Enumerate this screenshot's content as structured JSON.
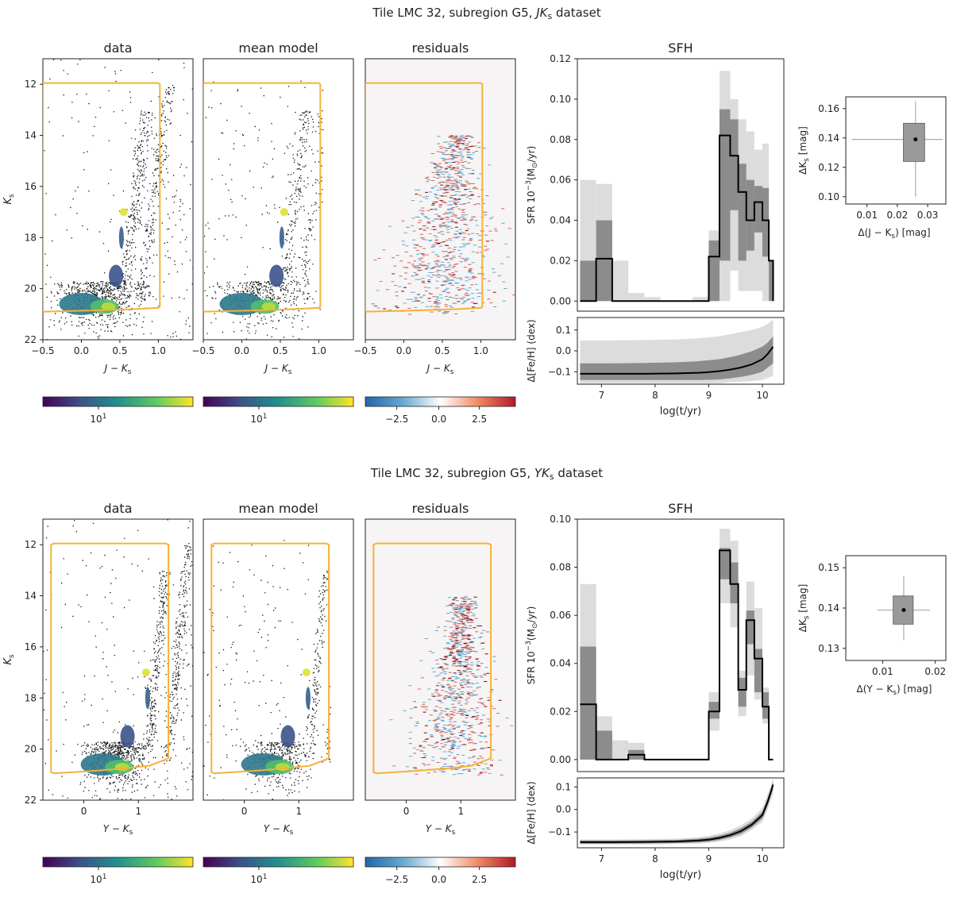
{
  "figure": {
    "panels": [
      {
        "title": "Tile LMC 32, subregion G5, ",
        "title_italic": "JK",
        "title_sub": "s",
        "title_end": " dataset",
        "cmd_titles": [
          "data",
          "mean model",
          "residuals"
        ],
        "cmd_ylabel": "K",
        "cmd_ylabel_sub": "s",
        "cmd_xlabel": [
          "J",
          "−",
          "K",
          "s"
        ],
        "cmd_xticks": [
          -0.5,
          0.0,
          0.5,
          1.0
        ],
        "cmd_xlim": [
          -0.5,
          1.45
        ],
        "cmd_yticks": [
          12,
          14,
          16,
          18,
          20,
          22
        ],
        "cmd_ylim": [
          22,
          11
        ],
        "colorbar_ticks": [
          "10",
          "1"
        ],
        "resid_ticks": [
          "−2.5",
          "0.0",
          "2.5"
        ],
        "sfh_title": "SFH",
        "sfr_ylabel": "SFR 10",
        "sfr_ylabel_exp": "−3",
        "sfr_ylabel_unit": "(M",
        "sfr_ylabel_sun": "⊙",
        "sfr_ylabel_end": "/yr)",
        "feh_ylabel": "Δ[Fe/H] (dex)",
        "age_xlabel": "log(t/yr)",
        "errbox_ylabel": "ΔK",
        "errbox_ylabel_sub": "s",
        "errbox_ylabel_unit": " [mag]",
        "errbox_xlabel": "Δ(J − K",
        "errbox_xlabel_sub": "s",
        "errbox_xlabel_end": ") [mag]"
      },
      {
        "title": "Tile LMC 32, subregion G5, ",
        "title_italic": "YK",
        "title_sub": "s",
        "title_end": " dataset",
        "cmd_titles": [
          "data",
          "mean model",
          "residuals"
        ],
        "cmd_ylabel": "K",
        "cmd_ylabel_sub": "s",
        "cmd_xlabel": [
          "Y",
          "−",
          "K",
          "s"
        ],
        "cmd_xticks": [
          0,
          1
        ],
        "cmd_xlim": [
          -0.75,
          2.0
        ],
        "cmd_yticks": [
          12,
          14,
          16,
          18,
          20,
          22
        ],
        "cmd_ylim": [
          22,
          11
        ],
        "colorbar_ticks": [
          "10",
          "1"
        ],
        "resid_ticks": [
          "−2.5",
          "0.0",
          "2.5"
        ],
        "sfh_title": "SFH",
        "sfr_ylabel": "SFR 10",
        "sfr_ylabel_exp": "−3",
        "sfr_ylabel_unit": "(M",
        "sfr_ylabel_sun": "⊙",
        "sfr_ylabel_end": "/yr)",
        "feh_ylabel": "Δ[Fe/H] (dex)",
        "age_xlabel": "log(t/yr)",
        "errbox_ylabel": "ΔK",
        "errbox_ylabel_sub": "s",
        "errbox_ylabel_unit": " [mag]",
        "errbox_xlabel": "Δ(Y − K",
        "errbox_xlabel_sub": "s",
        "errbox_xlabel_end": ") [mag]"
      }
    ]
  },
  "colors": {
    "selection_box": "#f5b335",
    "sfh_line": "#000000",
    "band_dark": "#8c8c8c",
    "band_light": "#dcdcdc",
    "resid_positive": "#c0392b",
    "resid_negative": "#5fa8d3",
    "viridis": [
      "#440154",
      "#3b528b",
      "#21918c",
      "#5ec962",
      "#fde725"
    ],
    "rdbu": [
      "#2166ac",
      "#67a9cf",
      "#ffffff",
      "#ef8a62",
      "#b2182b"
    ]
  },
  "chart_data": [
    {
      "type": "line",
      "name": "SFH JKs",
      "xlabel": "log(t/yr)",
      "xlim": [
        6.55,
        10.4
      ],
      "xticks": [
        7,
        8,
        9,
        10
      ],
      "ylim": [
        -0.005,
        0.12
      ],
      "yticks": [
        0.0,
        0.02,
        0.04,
        0.06,
        0.08,
        0.1,
        0.12
      ],
      "bin_edges": [
        6.6,
        6.9,
        7.2,
        7.5,
        7.8,
        8.1,
        8.4,
        8.7,
        9.0,
        9.2,
        9.4,
        9.55,
        9.7,
        9.85,
        10.0,
        10.12,
        10.2
      ],
      "sfr": [
        0.0,
        0.021,
        0.0,
        0.0,
        0.0,
        0.0,
        0.0,
        0.0,
        0.022,
        0.082,
        0.072,
        0.054,
        0.04,
        0.049,
        0.04,
        0.02
      ],
      "sfr_lo_dark": [
        0.0,
        0.0,
        0.0,
        0.0,
        0.0,
        0.0,
        0.0,
        0.0,
        0.0,
        0.02,
        0.045,
        0.02,
        0.025,
        0.034,
        0.022,
        0.0
      ],
      "sfr_hi_dark": [
        0.02,
        0.04,
        0.0,
        0.0,
        0.0,
        0.0,
        0.0,
        0.0,
        0.03,
        0.095,
        0.09,
        0.068,
        0.06,
        0.057,
        0.056,
        0.02
      ],
      "sfr_lo_light": [
        0.0,
        0.0,
        0.0,
        0.0,
        0.0,
        0.0,
        0.0,
        0.0,
        0.0,
        0.0,
        0.015,
        0.005,
        0.005,
        0.005,
        0.0,
        0.0
      ],
      "sfr_hi_light": [
        0.06,
        0.058,
        0.02,
        0.004,
        0.002,
        0.0,
        0.0,
        0.002,
        0.035,
        0.114,
        0.1,
        0.09,
        0.084,
        0.075,
        0.078,
        0.02
      ],
      "feh_ylim": [
        -0.16,
        0.16
      ],
      "feh_yticks": [
        -0.1,
        0.0,
        0.1
      ],
      "feh_x": [
        6.6,
        7.2,
        7.8,
        8.4,
        8.8,
        9.0,
        9.2,
        9.4,
        9.6,
        9.8,
        10.0,
        10.1,
        10.2
      ],
      "feh": [
        -0.11,
        -0.11,
        -0.11,
        -0.108,
        -0.105,
        -0.102,
        -0.097,
        -0.09,
        -0.08,
        -0.065,
        -0.04,
        -0.015,
        0.02
      ],
      "feh_dark_lo": [
        -0.14,
        -0.14,
        -0.14,
        -0.14,
        -0.14,
        -0.139,
        -0.137,
        -0.132,
        -0.125,
        -0.115,
        -0.1,
        -0.08,
        -0.06
      ],
      "feh_dark_hi": [
        -0.06,
        -0.06,
        -0.058,
        -0.055,
        -0.05,
        -0.045,
        -0.04,
        -0.03,
        -0.018,
        -0.002,
        0.02,
        0.04,
        0.07
      ],
      "feh_light_lo": [
        -0.155,
        -0.155,
        -0.155,
        -0.155,
        -0.155,
        -0.155,
        -0.155,
        -0.15,
        -0.148,
        -0.145,
        -0.14,
        -0.13,
        -0.12
      ],
      "feh_light_hi": [
        0.05,
        0.05,
        0.052,
        0.055,
        0.06,
        0.065,
        0.07,
        0.08,
        0.09,
        0.1,
        0.115,
        0.13,
        0.15
      ]
    },
    {
      "type": "line",
      "name": "SFH YKs",
      "xlabel": "log(t/yr)",
      "xlim": [
        6.55,
        10.4
      ],
      "xticks": [
        7,
        8,
        9,
        10
      ],
      "ylim": [
        -0.005,
        0.1
      ],
      "yticks": [
        0.0,
        0.02,
        0.04,
        0.06,
        0.08,
        0.1
      ],
      "bin_edges": [
        6.6,
        6.9,
        7.2,
        7.5,
        7.8,
        8.1,
        8.4,
        8.7,
        9.0,
        9.2,
        9.4,
        9.55,
        9.7,
        9.85,
        10.0,
        10.12,
        10.2
      ],
      "sfr": [
        0.023,
        0.0,
        0.0,
        0.002,
        0.0,
        0.0,
        0.0,
        0.0,
        0.02,
        0.087,
        0.073,
        0.029,
        0.058,
        0.042,
        0.022,
        0.0
      ],
      "sfr_lo_dark": [
        0.0,
        0.0,
        0.0,
        0.0,
        0.0,
        0.0,
        0.0,
        0.0,
        0.017,
        0.075,
        0.065,
        0.022,
        0.048,
        0.028,
        0.017,
        0.0
      ],
      "sfr_hi_dark": [
        0.047,
        0.012,
        0.0,
        0.004,
        0.0,
        0.0,
        0.0,
        0.0,
        0.024,
        0.088,
        0.082,
        0.034,
        0.062,
        0.046,
        0.028,
        0.0
      ],
      "sfr_lo_light": [
        0.0,
        0.0,
        0.0,
        0.0,
        0.0,
        0.0,
        0.0,
        0.0,
        0.012,
        0.065,
        0.055,
        0.018,
        0.035,
        0.025,
        0.015,
        0.0
      ],
      "sfr_hi_light": [
        0.073,
        0.018,
        0.008,
        0.007,
        0.0,
        0.0,
        0.0,
        0.0,
        0.028,
        0.096,
        0.091,
        0.037,
        0.074,
        0.063,
        0.03,
        0.0
      ],
      "feh_ylim": [
        -0.17,
        0.14
      ],
      "feh_yticks": [
        -0.1,
        0.0,
        0.1
      ],
      "feh_x": [
        6.6,
        7.2,
        7.8,
        8.4,
        8.8,
        9.0,
        9.2,
        9.4,
        9.6,
        9.8,
        10.0,
        10.1,
        10.2
      ],
      "feh": [
        -0.145,
        -0.145,
        -0.144,
        -0.142,
        -0.138,
        -0.134,
        -0.126,
        -0.114,
        -0.096,
        -0.068,
        -0.025,
        0.035,
        0.11
      ],
      "feh_dark_lo": [
        -0.152,
        -0.152,
        -0.151,
        -0.149,
        -0.146,
        -0.142,
        -0.135,
        -0.124,
        -0.108,
        -0.08,
        -0.04,
        0.018,
        0.09
      ],
      "feh_dark_hi": [
        -0.138,
        -0.138,
        -0.137,
        -0.135,
        -0.13,
        -0.125,
        -0.116,
        -0.103,
        -0.083,
        -0.055,
        -0.01,
        0.05,
        0.125
      ],
      "feh_light_lo": [
        -0.155,
        -0.155,
        -0.155,
        -0.153,
        -0.151,
        -0.148,
        -0.143,
        -0.133,
        -0.118,
        -0.09,
        -0.055,
        0.0,
        0.07
      ],
      "feh_light_hi": [
        -0.133,
        -0.133,
        -0.132,
        -0.129,
        -0.123,
        -0.117,
        -0.106,
        -0.092,
        -0.07,
        -0.04,
        0.008,
        0.07,
        0.135
      ]
    },
    {
      "type": "scatter",
      "name": "Error box JKs",
      "xlim": [
        0.003,
        0.036
      ],
      "ylim": [
        0.095,
        0.168
      ],
      "xticks": [
        0.01,
        0.02,
        0.03
      ],
      "xtick_labels": [
        "0.01",
        "0.02",
        "0.03"
      ],
      "yticks": [
        0.1,
        0.12,
        0.14,
        0.16
      ],
      "point": [
        0.026,
        0.139
      ],
      "box_x": [
        0.022,
        0.029
      ],
      "box_y": [
        0.124,
        0.15
      ],
      "whisker_x": [
        0.005,
        0.035
      ],
      "whisker_y": [
        0.1,
        0.165
      ]
    },
    {
      "type": "scatter",
      "name": "Error box YKs",
      "xlim": [
        0.003,
        0.022
      ],
      "ylim": [
        0.127,
        0.153
      ],
      "xticks": [
        0.01,
        0.02
      ],
      "xtick_labels": [
        "0.01",
        "0.02"
      ],
      "yticks": [
        0.13,
        0.14,
        0.15
      ],
      "point": [
        0.014,
        0.1395
      ],
      "box_x": [
        0.012,
        0.0158
      ],
      "box_y": [
        0.136,
        0.143
      ],
      "whisker_x": [
        0.009,
        0.019
      ],
      "whisker_y": [
        0.132,
        0.148
      ]
    }
  ]
}
